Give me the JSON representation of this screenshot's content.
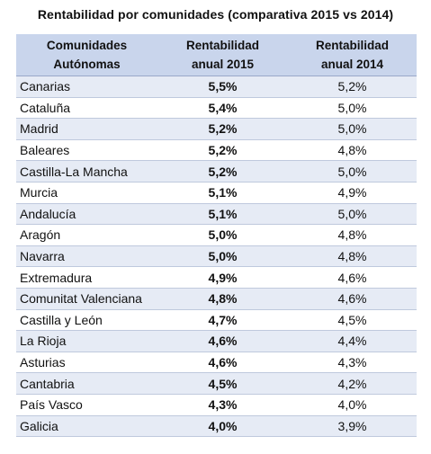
{
  "title": "Rentabilidad por comunidades (comparativa 2015 vs 2014)",
  "headers": {
    "region_line1": "Comunidades",
    "region_line2": "Autónomas",
    "y2015_line1": "Rentabilidad",
    "y2015_line2": "anual 2015",
    "y2014_line1": "Rentabilidad",
    "y2014_line2": "anual 2014"
  },
  "rows": [
    {
      "region": "Canarias",
      "y2015": "5,5%",
      "y2014": "5,2%"
    },
    {
      "region": "Cataluña",
      "y2015": "5,4%",
      "y2014": "5,0%"
    },
    {
      "region": "Madrid",
      "y2015": "5,2%",
      "y2014": "5,0%"
    },
    {
      "region": "Baleares",
      "y2015": "5,2%",
      "y2014": "4,8%"
    },
    {
      "region": "Castilla-La Mancha",
      "y2015": "5,2%",
      "y2014": "5,0%"
    },
    {
      "region": "Murcia",
      "y2015": "5,1%",
      "y2014": "4,9%"
    },
    {
      "region": "Andalucía",
      "y2015": "5,1%",
      "y2014": "5,0%"
    },
    {
      "region": "Aragón",
      "y2015": "5,0%",
      "y2014": "4,8%"
    },
    {
      "region": "Navarra",
      "y2015": "5,0%",
      "y2014": "4,8%"
    },
    {
      "region": "Extremadura",
      "y2015": "4,9%",
      "y2014": "4,6%"
    },
    {
      "region": "Comunitat Valenciana",
      "y2015": "4,8%",
      "y2014": "4,6%"
    },
    {
      "region": "Castilla y León",
      "y2015": "4,7%",
      "y2014": "4,5%"
    },
    {
      "region": "La Rioja",
      "y2015": "4,6%",
      "y2014": "4,4%"
    },
    {
      "region": "Asturias",
      "y2015": "4,6%",
      "y2014": "4,3%"
    },
    {
      "region": "Cantabria",
      "y2015": "4,5%",
      "y2014": "4,2%"
    },
    {
      "region": "País Vasco",
      "y2015": "4,3%",
      "y2014": "4,0%"
    },
    {
      "region": "Galicia",
      "y2015": "4,0%",
      "y2014": "3,9%"
    }
  ],
  "colors": {
    "header_bg": "#c9d5ec",
    "stripe_bg": "#e6ebf5"
  }
}
